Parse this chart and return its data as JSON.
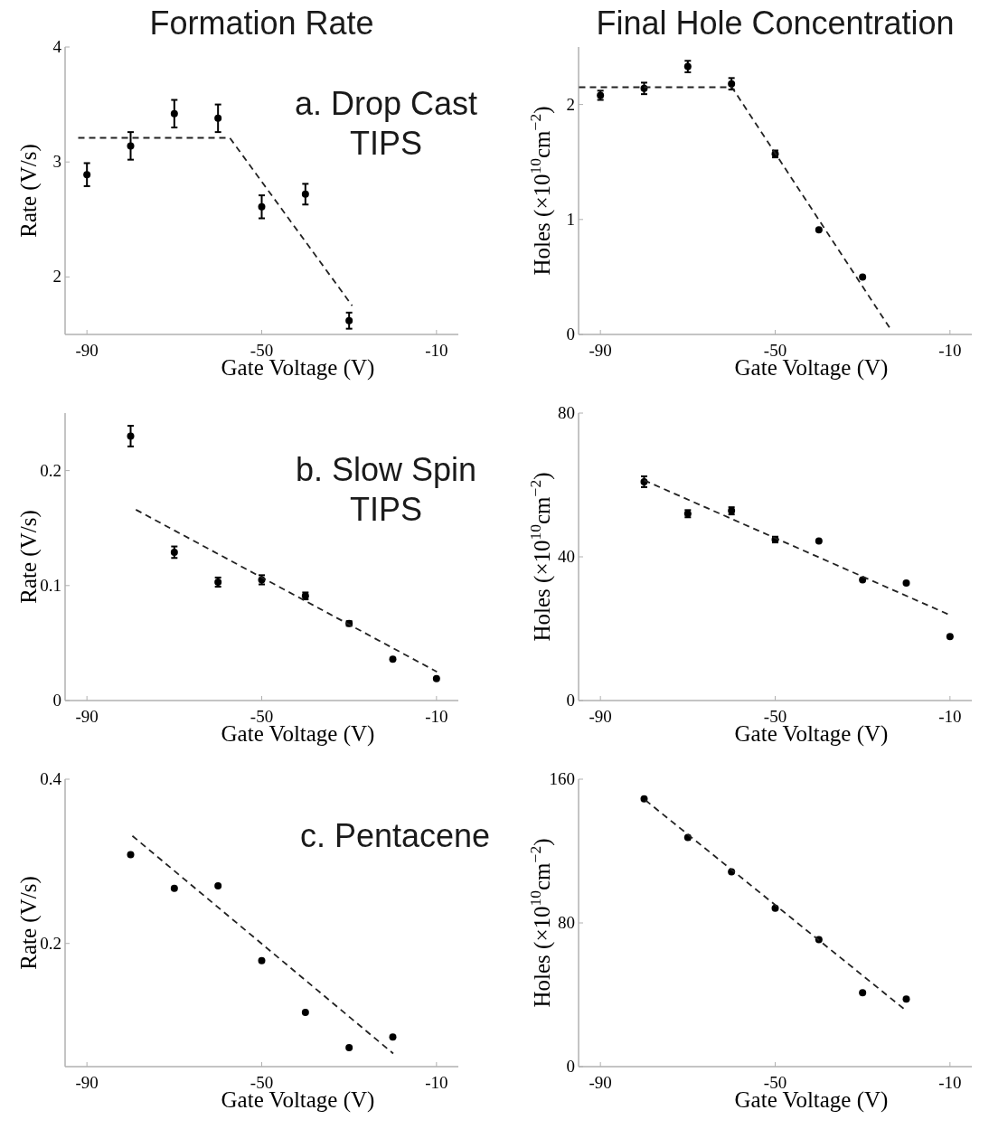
{
  "chart_data": [
    {
      "type": "scatter",
      "title": "Formation Rate",
      "xlabel": "Gate Voltage (V)",
      "ylabel": "Rate (V/s)",
      "xlim": [
        -95,
        -5
      ],
      "xticks": [
        -90,
        -50,
        -10
      ],
      "ylim": [
        1.5,
        4
      ],
      "yticks": [
        2,
        3,
        4
      ],
      "annotations": [
        "a. Drop Cast\nTIPS"
      ],
      "series": [
        {
          "marker": "circle",
          "color": "#000000",
          "x": [
            -90,
            -80,
            -70,
            -60,
            -50,
            -40,
            -30
          ],
          "values": [
            2.89,
            3.14,
            3.42,
            3.38,
            2.61,
            2.72,
            1.62
          ],
          "errors": [
            0.1,
            0.12,
            0.12,
            0.12,
            0.1,
            0.09,
            0.07
          ]
        },
        {
          "type": "line",
          "color": "#222222",
          "line_style": "dashed",
          "x": [
            -92,
            -57.3,
            -29.3
          ],
          "values": [
            3.21,
            3.21,
            1.75
          ]
        }
      ]
    },
    {
      "type": "scatter",
      "title": "Final Hole Concentration",
      "xlabel": "Gate Voltage (V)",
      "ylabel": "Holes (×10$^{10}$cm$^{−2}$)",
      "xlim": [
        -95,
        -5
      ],
      "xticks": [
        -90,
        -50,
        -10
      ],
      "ylim": [
        0,
        2.5
      ],
      "yticks": [
        0,
        1,
        2
      ],
      "series": [
        {
          "marker": "circle",
          "color": "#000000",
          "x": [
            -90,
            -80,
            -70,
            -60,
            -50,
            -40,
            -30
          ],
          "values": [
            2.08,
            2.14,
            2.33,
            2.18,
            1.57,
            0.91,
            0.5
          ],
          "errors": [
            0.04,
            0.05,
            0.05,
            0.05,
            0.03,
            null,
            null
          ]
        },
        {
          "type": "line",
          "color": "#222222",
          "line_style": "dashed",
          "x": [
            -94.9,
            -59.9,
            -23.5
          ],
          "values": [
            2.15,
            2.15,
            0.04
          ]
        }
      ]
    },
    {
      "type": "scatter",
      "xlabel": "Gate Voltage (V)",
      "ylabel": "Rate (V/s)",
      "xlim": [
        -95,
        -5
      ],
      "xticks": [
        -90,
        -50,
        -10
      ],
      "ylim": [
        0,
        0.25
      ],
      "yticks": [
        0,
        0.1,
        0.2
      ],
      "annotations": [
        "b. Slow Spin\nTIPS"
      ],
      "series": [
        {
          "marker": "circle",
          "color": "#000000",
          "x": [
            -80,
            -70,
            -60,
            -50,
            -40,
            -30,
            -20,
            -10
          ],
          "values": [
            0.23,
            0.129,
            0.103,
            0.105,
            0.091,
            0.067,
            0.036,
            0.019
          ],
          "errors": [
            0.009,
            0.005,
            0.004,
            0.004,
            0.003,
            0.002,
            null,
            null
          ]
        },
        {
          "type": "line",
          "color": "#222222",
          "line_style": "dashed",
          "x": [
            -78.8,
            -9.9
          ],
          "values": [
            0.166,
            0.025
          ]
        }
      ]
    },
    {
      "type": "scatter",
      "xlabel": "Gate Voltage (V)",
      "ylabel": "Holes (×10$^{10}$cm$^{−2}$)",
      "xlim": [
        -95,
        -5
      ],
      "xticks": [
        -90,
        -50,
        -10
      ],
      "ylim": [
        0,
        80
      ],
      "yticks": [
        0,
        40,
        80
      ],
      "series": [
        {
          "marker": "circle",
          "color": "#000000",
          "x": [
            -80,
            -70,
            -60,
            -50,
            -40,
            -30,
            -20,
            -10
          ],
          "values": [
            60.9,
            52,
            52.8,
            44.8,
            44.4,
            33.6,
            32.7,
            17.8
          ],
          "errors": [
            1.5,
            1,
            1,
            0.8,
            null,
            null,
            null,
            null
          ]
        },
        {
          "type": "line",
          "color": "#222222",
          "line_style": "dashed",
          "x": [
            -80,
            -10.4
          ],
          "values": [
            61.3,
            24
          ]
        }
      ]
    },
    {
      "type": "scatter",
      "xlabel": "Gate Voltage (V)",
      "ylabel": "Rate (V/s)",
      "xlim": [
        -95,
        -5
      ],
      "xticks": [
        -90,
        -50,
        -10
      ],
      "ylim": [
        0.05,
        0.4
      ],
      "yticks": [
        0.2,
        0.4
      ],
      "annotations": [
        "c. Pentacene"
      ],
      "series": [
        {
          "marker": "circle",
          "color": "#000000",
          "x": [
            -80,
            -70,
            -60,
            -50,
            -40,
            -30,
            -20
          ],
          "values": [
            0.308,
            0.267,
            0.27,
            0.179,
            0.116,
            0.073,
            0.086
          ]
        },
        {
          "type": "line",
          "color": "#222222",
          "line_style": "dashed",
          "x": [
            -79.6,
            -19.9
          ],
          "values": [
            0.331,
            0.066
          ]
        }
      ]
    },
    {
      "type": "scatter",
      "xlabel": "Gate Voltage (V)",
      "ylabel": "Holes (×10$^{10}$cm$^{−2}$)",
      "xlim": [
        -95,
        -5
      ],
      "xticks": [
        -90,
        -50,
        -10
      ],
      "ylim": [
        0,
        160
      ],
      "yticks": [
        0,
        80,
        160
      ],
      "series": [
        {
          "marker": "circle",
          "color": "#000000",
          "x": [
            -80,
            -70,
            -60,
            -50,
            -40,
            -30,
            -20
          ],
          "values": [
            149,
            127.6,
            108.4,
            88.2,
            70.7,
            41.1,
            37.6
          ]
        },
        {
          "type": "line",
          "color": "#222222",
          "line_style": "dashed",
          "x": [
            -79.7,
            -20
          ],
          "values": [
            148.3,
            31.1
          ]
        }
      ]
    }
  ]
}
